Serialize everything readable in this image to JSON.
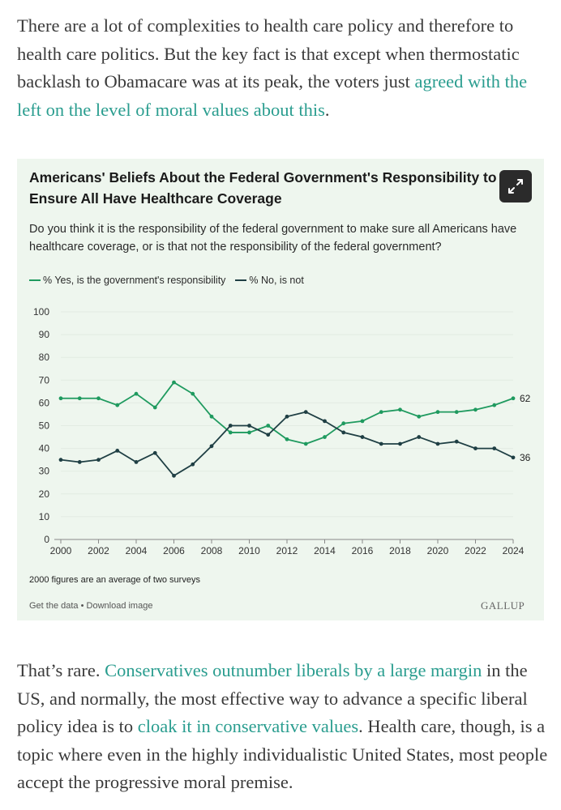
{
  "article": {
    "p1_text1": "There are a lot of complexities to health care policy and therefore to health care politics. But the key fact is that except when thermostatic backlash to Obamacare was at its peak, the voters just ",
    "p1_link": "agreed with the left on the level of moral values about this",
    "p1_text2": ".",
    "p2_text1": "That’s rare. ",
    "p2_link1": "Conservatives outnumber liberals by a large margin",
    "p2_text2": " in the US, and normally, the most effective way to advance a specific liberal policy idea is to ",
    "p2_link2": "cloak it in conservative values",
    "p2_text3": ". Health care, though, is a topic where even in the highly individualistic United States, most people accept the progressive moral premise."
  },
  "card": {
    "title_line1": "Americans' Beliefs About the Federal Government's Responsibility to",
    "title_line2": "Ensure All Have Healthcare Coverage",
    "subtitle": "Do you think it is the responsibility of the federal government to make sure all Americans have healthcare coverage, or is that not the responsibility of the federal government?",
    "footnote": "2000 figures are an average of two surveys",
    "get_data": "Get the data",
    "separator": " • ",
    "download": "Download image",
    "brand": "GALLUP",
    "expand_icon": "expand-icon"
  },
  "colors": {
    "yes": "#1f9a5f",
    "no": "#1f3f44",
    "grid": "#e2ebe2",
    "axis": "#888888",
    "link": "#2a9d8f"
  },
  "chart_data": {
    "type": "line",
    "title": "Americans' Beliefs About the Federal Government's Responsibility to Ensure All Have Healthcare Coverage",
    "x": [
      2000,
      2001,
      2002,
      2003,
      2004,
      2005,
      2006,
      2007,
      2008,
      2009,
      2010,
      2011,
      2012,
      2013,
      2014,
      2015,
      2016,
      2017,
      2018,
      2019,
      2020,
      2021,
      2022,
      2023,
      2024
    ],
    "xticks": [
      2000,
      2002,
      2004,
      2006,
      2008,
      2010,
      2012,
      2014,
      2016,
      2018,
      2020,
      2022,
      2024
    ],
    "yticks": [
      0,
      10,
      20,
      30,
      40,
      50,
      60,
      70,
      80,
      90,
      100
    ],
    "ylim": [
      0,
      100
    ],
    "xlabel": "",
    "ylabel": "",
    "grid": true,
    "legend_position": "top-left",
    "series": [
      {
        "name": "% Yes, is the government's responsibility",
        "color": "#1f9a5f",
        "values": [
          62,
          62,
          62,
          59,
          64,
          58,
          69,
          64,
          54,
          47,
          47,
          50,
          44,
          42,
          45,
          51,
          52,
          56,
          57,
          54,
          56,
          56,
          57,
          59,
          62
        ],
        "end_label": "62"
      },
      {
        "name": "% No, is not",
        "color": "#1f3f44",
        "values": [
          35,
          34,
          35,
          39,
          34,
          38,
          28,
          33,
          41,
          50,
          50,
          46,
          54,
          56,
          52,
          47,
          45,
          42,
          42,
          45,
          42,
          43,
          40,
          40,
          36
        ],
        "end_label": "36"
      }
    ]
  }
}
